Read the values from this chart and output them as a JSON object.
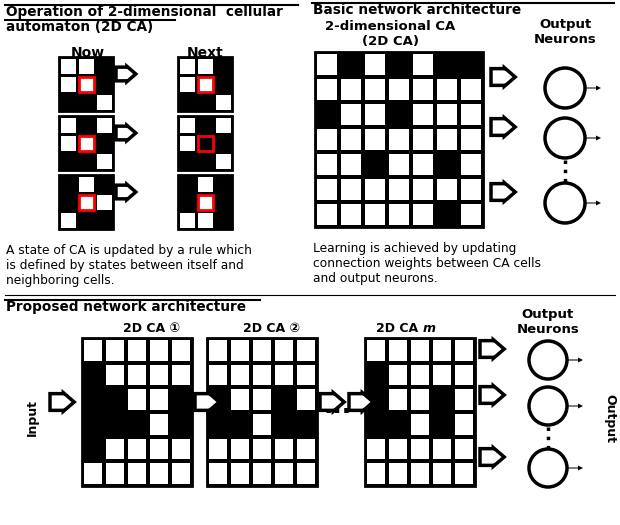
{
  "bg_color": "#ffffff",
  "title_left_line1": "Operation of 2-dimensional  cellular",
  "title_left_line2": "automaton (2D CA)",
  "title_right": "Basic network architecture",
  "title_bottom": "Proposed network architecture",
  "desc_left": "A state of CA is updated by a rule which\nis defined by states between itself and\nneighboring cells.",
  "desc_right": "Learning is achieved by updating\nconnection weights between CA cells\nand output neurons.",
  "label_now": "Now",
  "label_next": "Next",
  "label_2dca_top": "2-dimensional CA\n(2D CA)",
  "label_output_neurons": "Output\nNeurons",
  "label_input": "Input",
  "label_output": "Output",
  "label_ca1": "2D CA ①",
  "label_ca2": "2D CA ②",
  "label_cam": "2D CA m",
  "now_patterns": [
    [
      [
        0,
        0,
        1
      ],
      [
        0,
        0,
        1
      ],
      [
        1,
        1,
        0
      ]
    ],
    [
      [
        0,
        1,
        0
      ],
      [
        0,
        0,
        1
      ],
      [
        1,
        1,
        0
      ]
    ],
    [
      [
        1,
        0,
        1
      ],
      [
        1,
        0,
        0
      ],
      [
        0,
        1,
        1
      ]
    ]
  ],
  "next_patterns": [
    [
      [
        0,
        0,
        1
      ],
      [
        0,
        0,
        1
      ],
      [
        1,
        1,
        0
      ]
    ],
    [
      [
        0,
        1,
        0
      ],
      [
        0,
        1,
        1
      ],
      [
        1,
        1,
        0
      ]
    ],
    [
      [
        1,
        0,
        1
      ],
      [
        1,
        0,
        1
      ],
      [
        0,
        0,
        1
      ]
    ]
  ],
  "large_grid_pattern": [
    [
      0,
      1,
      0,
      1,
      0,
      1,
      1
    ],
    [
      0,
      0,
      0,
      0,
      0,
      0,
      0
    ],
    [
      1,
      0,
      0,
      1,
      0,
      0,
      0
    ],
    [
      0,
      0,
      0,
      0,
      0,
      0,
      0
    ],
    [
      0,
      0,
      1,
      0,
      0,
      1,
      0
    ],
    [
      0,
      0,
      0,
      0,
      0,
      0,
      0
    ],
    [
      0,
      0,
      0,
      0,
      0,
      1,
      0
    ]
  ],
  "bottom_grid_pattern1": [
    [
      0,
      0,
      0,
      0,
      0
    ],
    [
      1,
      0,
      0,
      0,
      0
    ],
    [
      1,
      1,
      0,
      0,
      1
    ],
    [
      1,
      1,
      1,
      0,
      1
    ],
    [
      1,
      0,
      0,
      0,
      0
    ],
    [
      0,
      0,
      0,
      0,
      0
    ]
  ],
  "bottom_grid_pattern2": [
    [
      0,
      0,
      0,
      0,
      0
    ],
    [
      0,
      0,
      0,
      0,
      0
    ],
    [
      1,
      0,
      0,
      1,
      0
    ],
    [
      1,
      1,
      0,
      1,
      1
    ],
    [
      0,
      0,
      0,
      0,
      0
    ],
    [
      0,
      0,
      0,
      0,
      0
    ]
  ],
  "bottom_grid_pattern3": [
    [
      0,
      0,
      0,
      0,
      0
    ],
    [
      1,
      0,
      0,
      0,
      0
    ],
    [
      1,
      0,
      0,
      1,
      0
    ],
    [
      1,
      1,
      0,
      1,
      0
    ],
    [
      0,
      0,
      0,
      0,
      0
    ],
    [
      0,
      0,
      0,
      0,
      0
    ]
  ]
}
